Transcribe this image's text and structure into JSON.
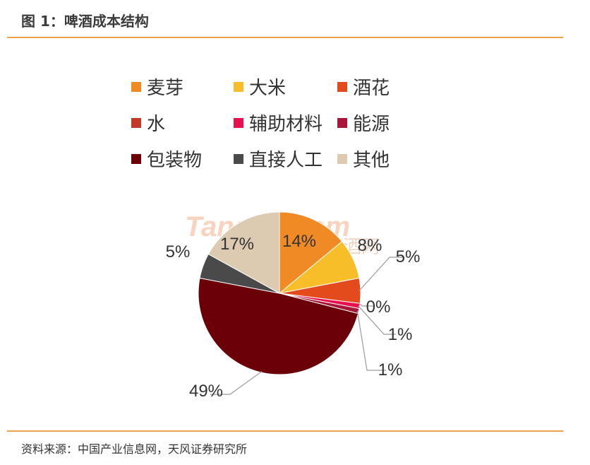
{
  "figure": {
    "title": "图 1：啤酒成本结构",
    "source": "资料来源：中国产业信息网，天风证券研究所"
  },
  "watermark": {
    "brand": "Tangjiu.com",
    "cn": "中国糖酒网"
  },
  "colors": {
    "accent_rule": "#f0a24a"
  },
  "chart_data": {
    "type": "pie",
    "title": "",
    "legend_placement": "top",
    "categories": [
      "麦芽",
      "大米",
      "酒花",
      "水",
      "辅助材料",
      "能源",
      "包装物",
      "直接人工",
      "其他"
    ],
    "values": [
      14,
      8,
      5,
      0,
      1,
      1,
      49,
      5,
      17
    ],
    "labels": [
      "14%",
      "8%",
      "5%",
      "0%",
      "1%",
      "1%",
      "49%",
      "5%",
      "17%"
    ],
    "colors": [
      "#f08a24",
      "#f8be2a",
      "#e34b1c",
      "#c0392b",
      "#e8104f",
      "#a8173a",
      "#6b0008",
      "#4a4a4a",
      "#dccbb0"
    ]
  }
}
